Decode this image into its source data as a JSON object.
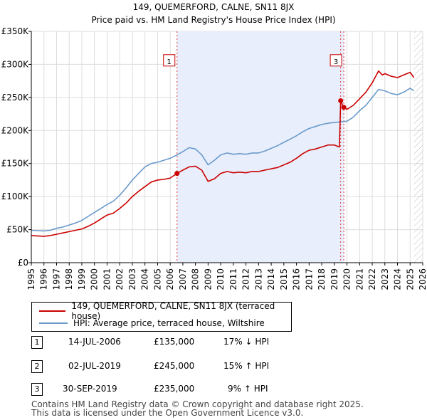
{
  "chart_data": {
    "type": "line",
    "title": "149, QUEMERFORD, CALNE, SN11 8JX",
    "subtitle": "Price paid vs. HM Land Registry's House Price Index (HPI)",
    "xlim": [
      1995,
      2026
    ],
    "ylim": [
      0,
      350000
    ],
    "x_ticks": [
      "1995",
      "1996",
      "1997",
      "1998",
      "1999",
      "2000",
      "2001",
      "2002",
      "2003",
      "2004",
      "2005",
      "2006",
      "2007",
      "2008",
      "2009",
      "2010",
      "2011",
      "2012",
      "2013",
      "2014",
      "2015",
      "2016",
      "2017",
      "2018",
      "2019",
      "2020",
      "2021",
      "2022",
      "2023",
      "2024",
      "2025",
      "2026"
    ],
    "y_ticks": [
      {
        "value": 0,
        "label": "£0"
      },
      {
        "value": 50000,
        "label": "£50K"
      },
      {
        "value": 100000,
        "label": "£100K"
      },
      {
        "value": 150000,
        "label": "£150K"
      },
      {
        "value": 200000,
        "label": "£200K"
      },
      {
        "value": 250000,
        "label": "£250K"
      },
      {
        "value": 300000,
        "label": "£300K"
      },
      {
        "value": 350000,
        "label": "£350K"
      }
    ],
    "grid": true,
    "shaded_ranges": [
      {
        "from": 2006.54,
        "to": 2019.75,
        "color": "#e8eefb"
      },
      {
        "from": 2025.3,
        "to": 2026,
        "hatch": true
      }
    ],
    "series": [
      {
        "name": "149, QUEMERFORD, CALNE, SN11 8JX (terraced house)",
        "color": "#cc0000",
        "points": [
          [
            1995.0,
            41000
          ],
          [
            1995.5,
            40500
          ],
          [
            1996.0,
            40000
          ],
          [
            1996.5,
            41000
          ],
          [
            1997.0,
            43000
          ],
          [
            1997.5,
            45000
          ],
          [
            1998.0,
            47000
          ],
          [
            1998.5,
            49000
          ],
          [
            1999.0,
            51000
          ],
          [
            1999.5,
            55000
          ],
          [
            2000.0,
            60000
          ],
          [
            2000.5,
            66000
          ],
          [
            2001.0,
            72000
          ],
          [
            2001.5,
            75000
          ],
          [
            2002.0,
            82000
          ],
          [
            2002.5,
            90000
          ],
          [
            2003.0,
            100000
          ],
          [
            2003.5,
            108000
          ],
          [
            2004.0,
            115000
          ],
          [
            2004.5,
            122000
          ],
          [
            2005.0,
            125000
          ],
          [
            2005.5,
            126000
          ],
          [
            2006.0,
            128000
          ],
          [
            2006.54,
            135000
          ],
          [
            2007.0,
            140000
          ],
          [
            2007.5,
            145000
          ],
          [
            2008.0,
            146000
          ],
          [
            2008.5,
            140000
          ],
          [
            2009.0,
            123000
          ],
          [
            2009.5,
            127000
          ],
          [
            2010.0,
            135000
          ],
          [
            2010.5,
            138000
          ],
          [
            2011.0,
            136000
          ],
          [
            2011.5,
            137000
          ],
          [
            2012.0,
            136000
          ],
          [
            2012.5,
            138000
          ],
          [
            2013.0,
            138000
          ],
          [
            2013.5,
            140000
          ],
          [
            2014.0,
            142000
          ],
          [
            2014.5,
            144000
          ],
          [
            2015.0,
            148000
          ],
          [
            2015.5,
            152000
          ],
          [
            2016.0,
            158000
          ],
          [
            2016.5,
            165000
          ],
          [
            2017.0,
            170000
          ],
          [
            2017.5,
            172000
          ],
          [
            2018.0,
            175000
          ],
          [
            2018.5,
            178000
          ],
          [
            2019.0,
            178000
          ],
          [
            2019.4,
            175000
          ],
          [
            2019.5,
            245000
          ],
          [
            2019.6,
            240000
          ],
          [
            2019.75,
            235000
          ],
          [
            2020.0,
            232000
          ],
          [
            2020.5,
            238000
          ],
          [
            2021.0,
            248000
          ],
          [
            2021.5,
            258000
          ],
          [
            2022.0,
            272000
          ],
          [
            2022.5,
            290000
          ],
          [
            2022.8,
            284000
          ],
          [
            2023.0,
            286000
          ],
          [
            2023.5,
            282000
          ],
          [
            2024.0,
            280000
          ],
          [
            2024.5,
            284000
          ],
          [
            2025.0,
            288000
          ],
          [
            2025.3,
            280000
          ]
        ]
      },
      {
        "name": "HPI: Average price, terraced house, Wiltshire",
        "color": "#6a9acb",
        "points": [
          [
            1995.0,
            49000
          ],
          [
            1995.5,
            48500
          ],
          [
            1996.0,
            48000
          ],
          [
            1996.5,
            49000
          ],
          [
            1997.0,
            52000
          ],
          [
            1997.5,
            54000
          ],
          [
            1998.0,
            57000
          ],
          [
            1998.5,
            60000
          ],
          [
            1999.0,
            64000
          ],
          [
            1999.5,
            70000
          ],
          [
            2000.0,
            76000
          ],
          [
            2000.5,
            82000
          ],
          [
            2001.0,
            88000
          ],
          [
            2001.5,
            93000
          ],
          [
            2002.0,
            102000
          ],
          [
            2002.5,
            113000
          ],
          [
            2003.0,
            125000
          ],
          [
            2003.5,
            135000
          ],
          [
            2004.0,
            145000
          ],
          [
            2004.5,
            150000
          ],
          [
            2005.0,
            152000
          ],
          [
            2005.5,
            155000
          ],
          [
            2006.0,
            158000
          ],
          [
            2006.54,
            163000
          ],
          [
            2007.0,
            168000
          ],
          [
            2007.5,
            174000
          ],
          [
            2008.0,
            172000
          ],
          [
            2008.5,
            163000
          ],
          [
            2009.0,
            148000
          ],
          [
            2009.5,
            155000
          ],
          [
            2010.0,
            163000
          ],
          [
            2010.5,
            166000
          ],
          [
            2011.0,
            164000
          ],
          [
            2011.5,
            165000
          ],
          [
            2012.0,
            164000
          ],
          [
            2012.5,
            166000
          ],
          [
            2013.0,
            166000
          ],
          [
            2013.5,
            169000
          ],
          [
            2014.0,
            173000
          ],
          [
            2014.5,
            177000
          ],
          [
            2015.0,
            182000
          ],
          [
            2015.5,
            187000
          ],
          [
            2016.0,
            192000
          ],
          [
            2016.5,
            198000
          ],
          [
            2017.0,
            203000
          ],
          [
            2017.5,
            206000
          ],
          [
            2018.0,
            209000
          ],
          [
            2018.5,
            211000
          ],
          [
            2019.0,
            212000
          ],
          [
            2019.5,
            213000
          ],
          [
            2020.0,
            214000
          ],
          [
            2020.5,
            220000
          ],
          [
            2021.0,
            230000
          ],
          [
            2021.5,
            238000
          ],
          [
            2022.0,
            250000
          ],
          [
            2022.5,
            262000
          ],
          [
            2023.0,
            260000
          ],
          [
            2023.5,
            256000
          ],
          [
            2024.0,
            254000
          ],
          [
            2024.5,
            258000
          ],
          [
            2025.0,
            264000
          ],
          [
            2025.3,
            260000
          ]
        ]
      }
    ],
    "markers": [
      {
        "id": "1",
        "x": 2006.54,
        "y": 135000
      },
      {
        "id": "2",
        "x": 2019.5,
        "y": 245000
      },
      {
        "id": "3",
        "x": 2019.75,
        "y": 235000
      }
    ],
    "annotation_labels": [
      {
        "id": "1",
        "x": 2006.54,
        "y": 305000
      },
      {
        "id": "3",
        "x": 2019.75,
        "y": 305000
      }
    ]
  },
  "legend": {
    "property_label": "149, QUEMERFORD, CALNE, SN11 8JX (terraced house)",
    "hpi_label": "HPI: Average price, terraced house, Wiltshire",
    "property_color": "#cc0000",
    "hpi_color": "#6a9acb"
  },
  "transactions": [
    {
      "num": "1",
      "date": "14-JUL-2006",
      "price": "£135,000",
      "hpi": "17% ↓ HPI"
    },
    {
      "num": "2",
      "date": "02-JUL-2019",
      "price": "£245,000",
      "hpi": "15% ↑ HPI"
    },
    {
      "num": "3",
      "date": "30-SEP-2019",
      "price": "£235,000",
      "hpi": "9% ↑ HPI"
    }
  ],
  "footer": {
    "line1": "Contains HM Land Registry data © Crown copyright and database right 2025.",
    "line2": "This data is licensed under the Open Government Licence v3.0."
  }
}
